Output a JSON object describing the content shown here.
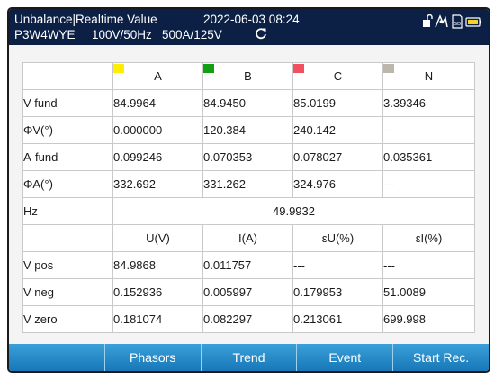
{
  "header": {
    "title": "Unbalance|Realtime Value",
    "datetime": "2022-06-03 08:24",
    "wiring": "P3W4WYE",
    "voltage_freq": "100V/50Hz",
    "current_range": "500A/125V",
    "icons": [
      "refresh-icon",
      "unlock-icon",
      "signal-icon",
      "sd-card-icon",
      "battery-icon"
    ]
  },
  "phases": [
    {
      "name": "A",
      "color": "#ffee00"
    },
    {
      "name": "B",
      "color": "#12a012"
    },
    {
      "name": "C",
      "color": "#f25060"
    },
    {
      "name": "N",
      "color": "#bdb6ad"
    }
  ],
  "rows": [
    {
      "label": "V-fund",
      "values": [
        "84.9964",
        "84.9450",
        "85.0199",
        "3.39346"
      ]
    },
    {
      "label": "ΦV(°)",
      "values": [
        "0.000000",
        "120.384",
        "240.142",
        "---"
      ]
    },
    {
      "label": "A-fund",
      "values": [
        "0.099246",
        "0.070353",
        "0.078027",
        "0.035361"
      ]
    },
    {
      "label": "ΦA(°)",
      "values": [
        "332.692",
        "331.262",
        "324.976",
        "---"
      ]
    }
  ],
  "hz": {
    "label": "Hz",
    "value": "49.9932"
  },
  "sequence_headers": [
    "U(V)",
    "I(A)",
    "εU(%)",
    "εI(%)"
  ],
  "sequence_rows": [
    {
      "label": "V pos",
      "values": [
        "84.9868",
        "0.011757",
        "---",
        "---"
      ]
    },
    {
      "label": "V neg",
      "values": [
        "0.152936",
        "0.005997",
        "0.179953",
        "51.0089"
      ]
    },
    {
      "label": "V zero",
      "values": [
        "0.181074",
        "0.082297",
        "0.213061",
        "699.998"
      ]
    }
  ],
  "softkeys": [
    "",
    "Phasors",
    "Trend",
    "Event",
    "Start Rec."
  ]
}
